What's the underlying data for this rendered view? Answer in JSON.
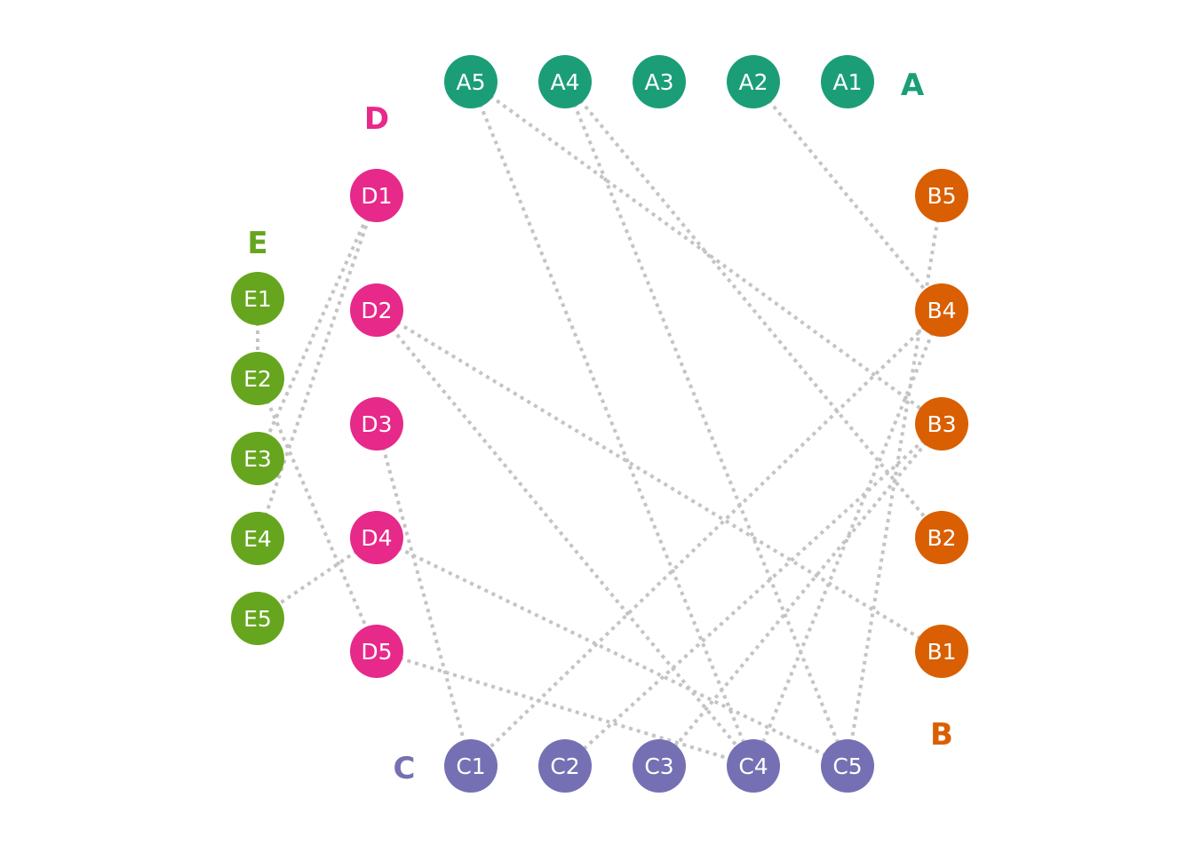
{
  "groups": [
    {
      "id": "A",
      "label": "A",
      "color": "#1b9e77"
    },
    {
      "id": "B",
      "label": "B",
      "color": "#d95f02"
    },
    {
      "id": "C",
      "label": "C",
      "color": "#7570b3"
    },
    {
      "id": "D",
      "label": "D",
      "color": "#e7298a"
    },
    {
      "id": "E",
      "label": "E",
      "color": "#66a61e"
    }
  ],
  "nodes": [
    {
      "id": "A1",
      "label": "A1",
      "group": "A"
    },
    {
      "id": "A2",
      "label": "A2",
      "group": "A"
    },
    {
      "id": "A3",
      "label": "A3",
      "group": "A"
    },
    {
      "id": "A4",
      "label": "A4",
      "group": "A"
    },
    {
      "id": "A5",
      "label": "A5",
      "group": "A"
    },
    {
      "id": "B1",
      "label": "B1",
      "group": "B"
    },
    {
      "id": "B2",
      "label": "B2",
      "group": "B"
    },
    {
      "id": "B3",
      "label": "B3",
      "group": "B"
    },
    {
      "id": "B4",
      "label": "B4",
      "group": "B"
    },
    {
      "id": "B5",
      "label": "B5",
      "group": "B"
    },
    {
      "id": "C1",
      "label": "C1",
      "group": "C"
    },
    {
      "id": "C2",
      "label": "C2",
      "group": "C"
    },
    {
      "id": "C3",
      "label": "C3",
      "group": "C"
    },
    {
      "id": "C4",
      "label": "C4",
      "group": "C"
    },
    {
      "id": "C5",
      "label": "C5",
      "group": "C"
    },
    {
      "id": "D1",
      "label": "D1",
      "group": "D"
    },
    {
      "id": "D2",
      "label": "D2",
      "group": "D"
    },
    {
      "id": "D3",
      "label": "D3",
      "group": "D"
    },
    {
      "id": "D4",
      "label": "D4",
      "group": "D"
    },
    {
      "id": "D5",
      "label": "D5",
      "group": "D"
    },
    {
      "id": "E1",
      "label": "E1",
      "group": "E"
    },
    {
      "id": "E2",
      "label": "E2",
      "group": "E"
    },
    {
      "id": "E3",
      "label": "E3",
      "group": "E"
    },
    {
      "id": "E4",
      "label": "E4",
      "group": "E"
    },
    {
      "id": "E5",
      "label": "E5",
      "group": "E"
    }
  ],
  "edges": [
    [
      "A5",
      "B3"
    ],
    [
      "A5",
      "C4"
    ],
    [
      "A4",
      "B2"
    ],
    [
      "A4",
      "C5"
    ],
    [
      "A2",
      "B4"
    ],
    [
      "B4",
      "C1"
    ],
    [
      "B4",
      "C4"
    ],
    [
      "B5",
      "C5"
    ],
    [
      "B3",
      "C2"
    ],
    [
      "B3",
      "C3"
    ],
    [
      "D1",
      "E3"
    ],
    [
      "D1",
      "E4"
    ],
    [
      "D2",
      "C4"
    ],
    [
      "D2",
      "B1"
    ],
    [
      "D3",
      "C1"
    ],
    [
      "D4",
      "E5"
    ],
    [
      "D4",
      "C5"
    ],
    [
      "D5",
      "C4"
    ],
    [
      "E1",
      "E2"
    ],
    [
      "E2",
      "D5"
    ]
  ]
}
